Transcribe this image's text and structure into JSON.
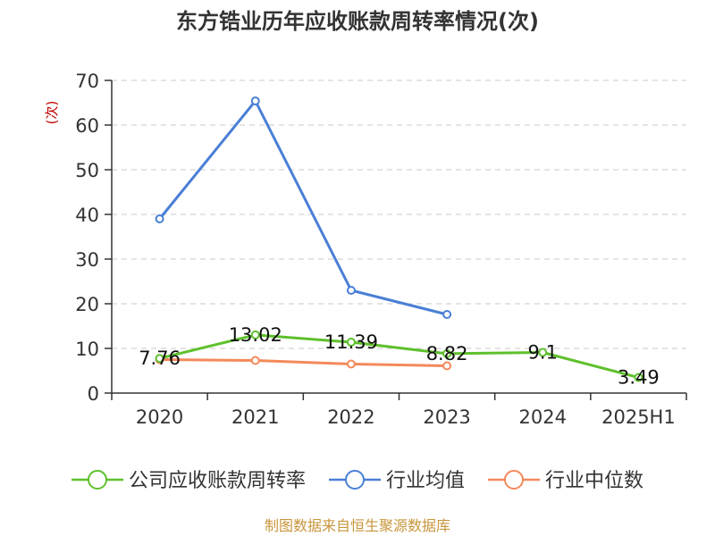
{
  "chart_data": {
    "type": "line",
    "title": "东方锆业历年应收账款周转率情况(次)",
    "ylabel": "(次)",
    "xlabel": "",
    "categories": [
      "2020",
      "2021",
      "2022",
      "2023",
      "2024",
      "2025H1"
    ],
    "ylim": [
      0,
      70
    ],
    "yticks": [
      0,
      10,
      20,
      30,
      40,
      50,
      60,
      70
    ],
    "grid": true,
    "legend_position": "bottom",
    "series": [
      {
        "name": "公司应收账款周转率",
        "color": "#5ec02c",
        "values": [
          7.76,
          13.02,
          11.39,
          8.82,
          9.1,
          3.49
        ],
        "labels": [
          "7.76",
          "13.02",
          "11.39",
          "8.82",
          "9.1",
          "3.49"
        ]
      },
      {
        "name": "行业均值",
        "color": "#4a7fd6",
        "values": [
          39,
          65.4,
          23,
          17.6,
          null,
          null
        ],
        "labels": null
      },
      {
        "name": "行业中位数",
        "color": "#f4895a",
        "values": [
          7.5,
          7.3,
          6.5,
          6.1,
          null,
          null
        ],
        "labels": null
      }
    ]
  },
  "source": "制图数据来自恒生聚源数据库"
}
